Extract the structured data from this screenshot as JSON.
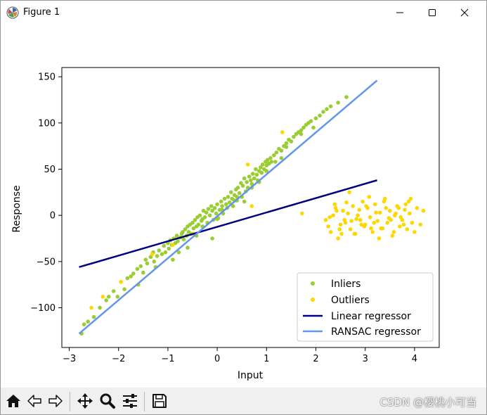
{
  "window": {
    "title": "Figure 1"
  },
  "toolbar": {
    "buttons": [
      "home-icon",
      "back-icon",
      "forward-icon",
      "pan-icon",
      "zoom-icon",
      "subplots-icon",
      "save-icon"
    ]
  },
  "watermark": "CSDN @樱桃小可当",
  "chart_data": {
    "type": "scatter",
    "title": "",
    "xlabel": "Input",
    "ylabel": "Response",
    "xlim": [
      -3.15,
      4.5
    ],
    "ylim": [
      -143,
      160
    ],
    "xticks": [
      -3,
      -2,
      -1,
      0,
      1,
      2,
      3,
      4
    ],
    "yticks": [
      -100,
      -50,
      0,
      50,
      100,
      150
    ],
    "grid": false,
    "legend_position": "lower-right",
    "colors": {
      "inliers": "#9acd32",
      "outliers": "#ffd700",
      "linear": "#000080",
      "ransac": "#6495ed"
    },
    "series": [
      {
        "name": "Inliers",
        "kind": "scatter",
        "x": [
          -2.75,
          -2.7,
          -2.62,
          -2.5,
          -2.38,
          -2.25,
          -2.2,
          -2.1,
          -2.02,
          -1.95,
          -1.88,
          -1.82,
          -1.75,
          -1.7,
          -1.62,
          -1.55,
          -1.5,
          -1.45,
          -1.42,
          -1.35,
          -1.3,
          -1.28,
          -1.22,
          -1.18,
          -1.12,
          -1.08,
          -1.05,
          -1.0,
          -0.98,
          -0.95,
          -0.92,
          -0.88,
          -0.85,
          -0.82,
          -0.8,
          -0.75,
          -0.72,
          -0.7,
          -0.68,
          -0.65,
          -0.62,
          -0.6,
          -0.58,
          -0.55,
          -0.52,
          -0.5,
          -0.48,
          -0.45,
          -0.42,
          -0.4,
          -0.38,
          -0.35,
          -0.32,
          -0.3,
          -0.28,
          -0.25,
          -0.22,
          -0.2,
          -0.18,
          -0.15,
          -0.12,
          -0.1,
          -0.08,
          -0.05,
          -0.02,
          0.0,
          0.02,
          0.05,
          0.08,
          0.1,
          0.12,
          0.15,
          0.18,
          0.2,
          0.22,
          0.25,
          0.28,
          0.3,
          0.32,
          0.35,
          0.38,
          0.4,
          0.42,
          0.45,
          0.48,
          0.5,
          0.52,
          0.55,
          0.58,
          0.6,
          0.62,
          0.65,
          0.68,
          0.7,
          0.72,
          0.75,
          0.78,
          0.8,
          0.82,
          0.85,
          0.88,
          0.9,
          0.92,
          0.95,
          0.98,
          1.0,
          1.02,
          1.05,
          1.08,
          1.1,
          1.15,
          1.2,
          1.25,
          1.3,
          1.35,
          1.4,
          1.45,
          1.5,
          1.55,
          1.6,
          1.65,
          1.7,
          1.75,
          1.8,
          1.85,
          1.9,
          1.95,
          2.0,
          2.08,
          2.15,
          2.22,
          2.3,
          2.45,
          2.62,
          -0.9,
          -0.6,
          -0.3,
          0.1,
          0.4,
          0.7,
          1.0,
          1.3,
          -1.6,
          -0.1,
          0.55,
          1.4,
          -1.25,
          -0.78,
          -0.42,
          0.0,
          0.35,
          0.85,
          1.18,
          1.7
        ],
        "y": [
          -128,
          -118,
          -115,
          -110,
          -100,
          -92,
          -88,
          -82,
          -88,
          -72,
          -80,
          -68,
          -66,
          -63,
          -58,
          -55,
          -62,
          -48,
          -52,
          -45,
          -40,
          -50,
          -44,
          -38,
          -42,
          -33,
          -40,
          -30,
          -36,
          -27,
          -32,
          -25,
          -30,
          -22,
          -28,
          -24,
          -20,
          -18,
          -26,
          -15,
          -22,
          -12,
          -18,
          -10,
          -20,
          -8,
          -14,
          -5,
          -12,
          -2,
          -10,
          0,
          -6,
          -4,
          5,
          -2,
          3,
          -8,
          7,
          0,
          10,
          5,
          -5,
          8,
          2,
          12,
          -3,
          6,
          15,
          10,
          2,
          18,
          12,
          8,
          20,
          14,
          25,
          18,
          10,
          22,
          28,
          16,
          30,
          24,
          35,
          20,
          32,
          40,
          26,
          36,
          30,
          42,
          38,
          34,
          45,
          40,
          50,
          44,
          38,
          48,
          52,
          46,
          55,
          50,
          58,
          54,
          60,
          56,
          62,
          58,
          65,
          68,
          72,
          70,
          75,
          78,
          82,
          80,
          85,
          88,
          90,
          92,
          95,
          98,
          100,
          102,
          95,
          105,
          108,
          112,
          115,
          118,
          122,
          128,
          -48,
          -35,
          -12,
          6,
          20,
          30,
          48,
          62,
          -75,
          -25,
          15,
          74,
          -56,
          -40,
          -22,
          -4,
          16,
          36,
          58,
          88
        ]
      },
      {
        "name": "Outliers",
        "kind": "scatter",
        "x": [
          -2.55,
          -2.32,
          -1.95,
          -1.32,
          -0.9,
          -0.48,
          0.62,
          0.7,
          1.32,
          1.72,
          2.2,
          2.25,
          2.3,
          2.35,
          2.4,
          2.45,
          2.5,
          2.55,
          2.6,
          2.65,
          2.7,
          2.75,
          2.8,
          2.85,
          2.9,
          2.95,
          3.0,
          3.05,
          3.1,
          3.15,
          3.2,
          3.25,
          3.3,
          3.35,
          3.4,
          3.45,
          3.5,
          3.55,
          3.6,
          3.65,
          3.7,
          3.75,
          3.8,
          3.85,
          3.9,
          3.95,
          4.0,
          4.05,
          4.12,
          4.18,
          2.28,
          2.38,
          2.48,
          2.58,
          2.68,
          2.78,
          2.88,
          2.98,
          3.08,
          3.18,
          3.28,
          3.38,
          3.48,
          3.58,
          3.68,
          3.78,
          3.88,
          2.42,
          2.72,
          3.02,
          3.32,
          3.62,
          3.92,
          2.52,
          2.82,
          3.12,
          3.42,
          3.72,
          2.62,
          2.92,
          3.22,
          3.52,
          3.82
        ],
        "y": [
          -100,
          -88,
          -72,
          -42,
          -32,
          -20,
          55,
          10,
          90,
          2,
          -5,
          -12,
          -18,
          0,
          8,
          -25,
          -10,
          5,
          -8,
          2,
          -15,
          10,
          -20,
          0,
          -5,
          15,
          -10,
          8,
          -2,
          -18,
          12,
          -6,
          3,
          -14,
          18,
          -8,
          5,
          -22,
          0,
          10,
          -12,
          -5,
          6,
          -15,
          2,
          -8,
          -18,
          8,
          -10,
          5,
          -2,
          12,
          -15,
          -5,
          25,
          -20,
          6,
          -12,
          20,
          -8,
          -25,
          15,
          -3,
          -18,
          8,
          -10,
          15,
          5,
          -6,
          10,
          -14,
          2,
          18,
          -20,
          -4,
          -14,
          8,
          -2,
          14,
          -10,
          3,
          -5,
          12
        ]
      },
      {
        "name": "Linear regressor",
        "kind": "line",
        "x": [
          -2.8,
          3.24
        ],
        "y": [
          -56,
          38
        ]
      },
      {
        "name": "RANSAC regressor",
        "kind": "line",
        "x": [
          -2.8,
          3.24
        ],
        "y": [
          -128,
          146
        ]
      }
    ]
  }
}
